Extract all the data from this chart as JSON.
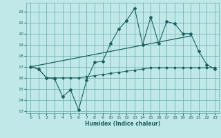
{
  "title": "",
  "xlabel": "Humidex (Indice chaleur)",
  "bg_color": "#c0e8e8",
  "grid_color": "#60a8a8",
  "line_color": "#1a6060",
  "xlim": [
    -0.5,
    23.5
  ],
  "ylim": [
    12.8,
    22.8
  ],
  "yticks": [
    13,
    14,
    15,
    16,
    17,
    18,
    19,
    20,
    21,
    22
  ],
  "xticks": [
    0,
    1,
    2,
    3,
    4,
    5,
    6,
    7,
    8,
    9,
    10,
    11,
    12,
    13,
    14,
    15,
    16,
    17,
    18,
    19,
    20,
    21,
    22,
    23
  ],
  "series1_x": [
    0,
    1,
    2,
    3,
    4,
    5,
    6,
    7,
    8,
    9,
    10,
    11,
    12,
    13,
    14,
    15,
    16,
    17,
    18,
    19,
    20,
    21,
    22,
    23
  ],
  "series1_y": [
    17.0,
    16.8,
    16.0,
    15.9,
    14.3,
    14.9,
    13.1,
    15.8,
    17.4,
    17.5,
    19.1,
    20.4,
    21.2,
    22.3,
    19.0,
    21.5,
    19.1,
    21.1,
    20.9,
    20.0,
    20.0,
    18.4,
    17.2,
    16.8
  ],
  "series2_x": [
    0,
    1,
    2,
    3,
    4,
    5,
    6,
    7,
    8,
    9,
    10,
    11,
    12,
    13,
    14,
    15,
    16,
    17,
    18,
    19,
    20,
    21,
    22,
    23
  ],
  "series2_y": [
    17.0,
    16.8,
    16.0,
    16.0,
    16.0,
    16.0,
    16.0,
    16.1,
    16.2,
    16.3,
    16.4,
    16.5,
    16.6,
    16.7,
    16.8,
    16.9,
    16.9,
    16.9,
    16.9,
    16.9,
    16.9,
    16.9,
    16.9,
    16.9
  ],
  "series3_x": [
    0,
    20
  ],
  "series3_y": [
    17.0,
    19.8
  ]
}
